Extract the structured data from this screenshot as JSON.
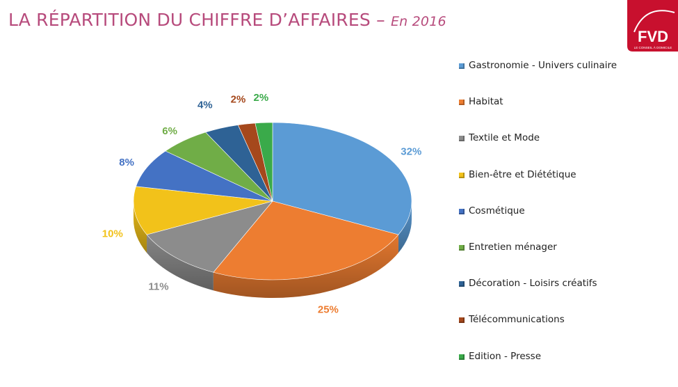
{
  "header": {
    "title": "LA RÉPARTITION DU CHIFFRE D’AFFAIRES – ",
    "subtitle": "En 2016"
  },
  "logo": {
    "text": "FVD",
    "tagline": "LE CONSEIL À DOMICILE",
    "color": "#c8102e"
  },
  "chart_data": {
    "type": "pie",
    "title": "LA RÉPARTITION DU CHIFFRE D’AFFAIRES – En 2016",
    "style": "3d-tilted",
    "legend_position": "right",
    "slices": [
      {
        "label": "Gastronomie - Univers culinaire",
        "value": 32,
        "display": "32%",
        "color": "#5b9bd5"
      },
      {
        "label": "Habitat",
        "value": 25,
        "display": "25%",
        "color": "#ed7d31"
      },
      {
        "label": "Textile et Mode",
        "value": 11,
        "display": "11%",
        "color": "#8c8c8c"
      },
      {
        "label": "Bien-être et Diététique",
        "value": 10,
        "display": "10%",
        "color": "#f2c21a"
      },
      {
        "label": "Cosmétique",
        "value": 8,
        "display": "8%",
        "color": "#4472c4"
      },
      {
        "label": "Entretien ménager",
        "value": 6,
        "display": "6%",
        "color": "#70ad47"
      },
      {
        "label": "Décoration - Loisirs créatifs",
        "value": 4,
        "display": "4%",
        "color": "#2e6295"
      },
      {
        "label": "Télécommunications",
        "value": 2,
        "display": "2%",
        "color": "#a5481c"
      },
      {
        "label": "Edition - Presse",
        "value": 2,
        "display": "2%",
        "color": "#3aaa4a"
      }
    ]
  }
}
